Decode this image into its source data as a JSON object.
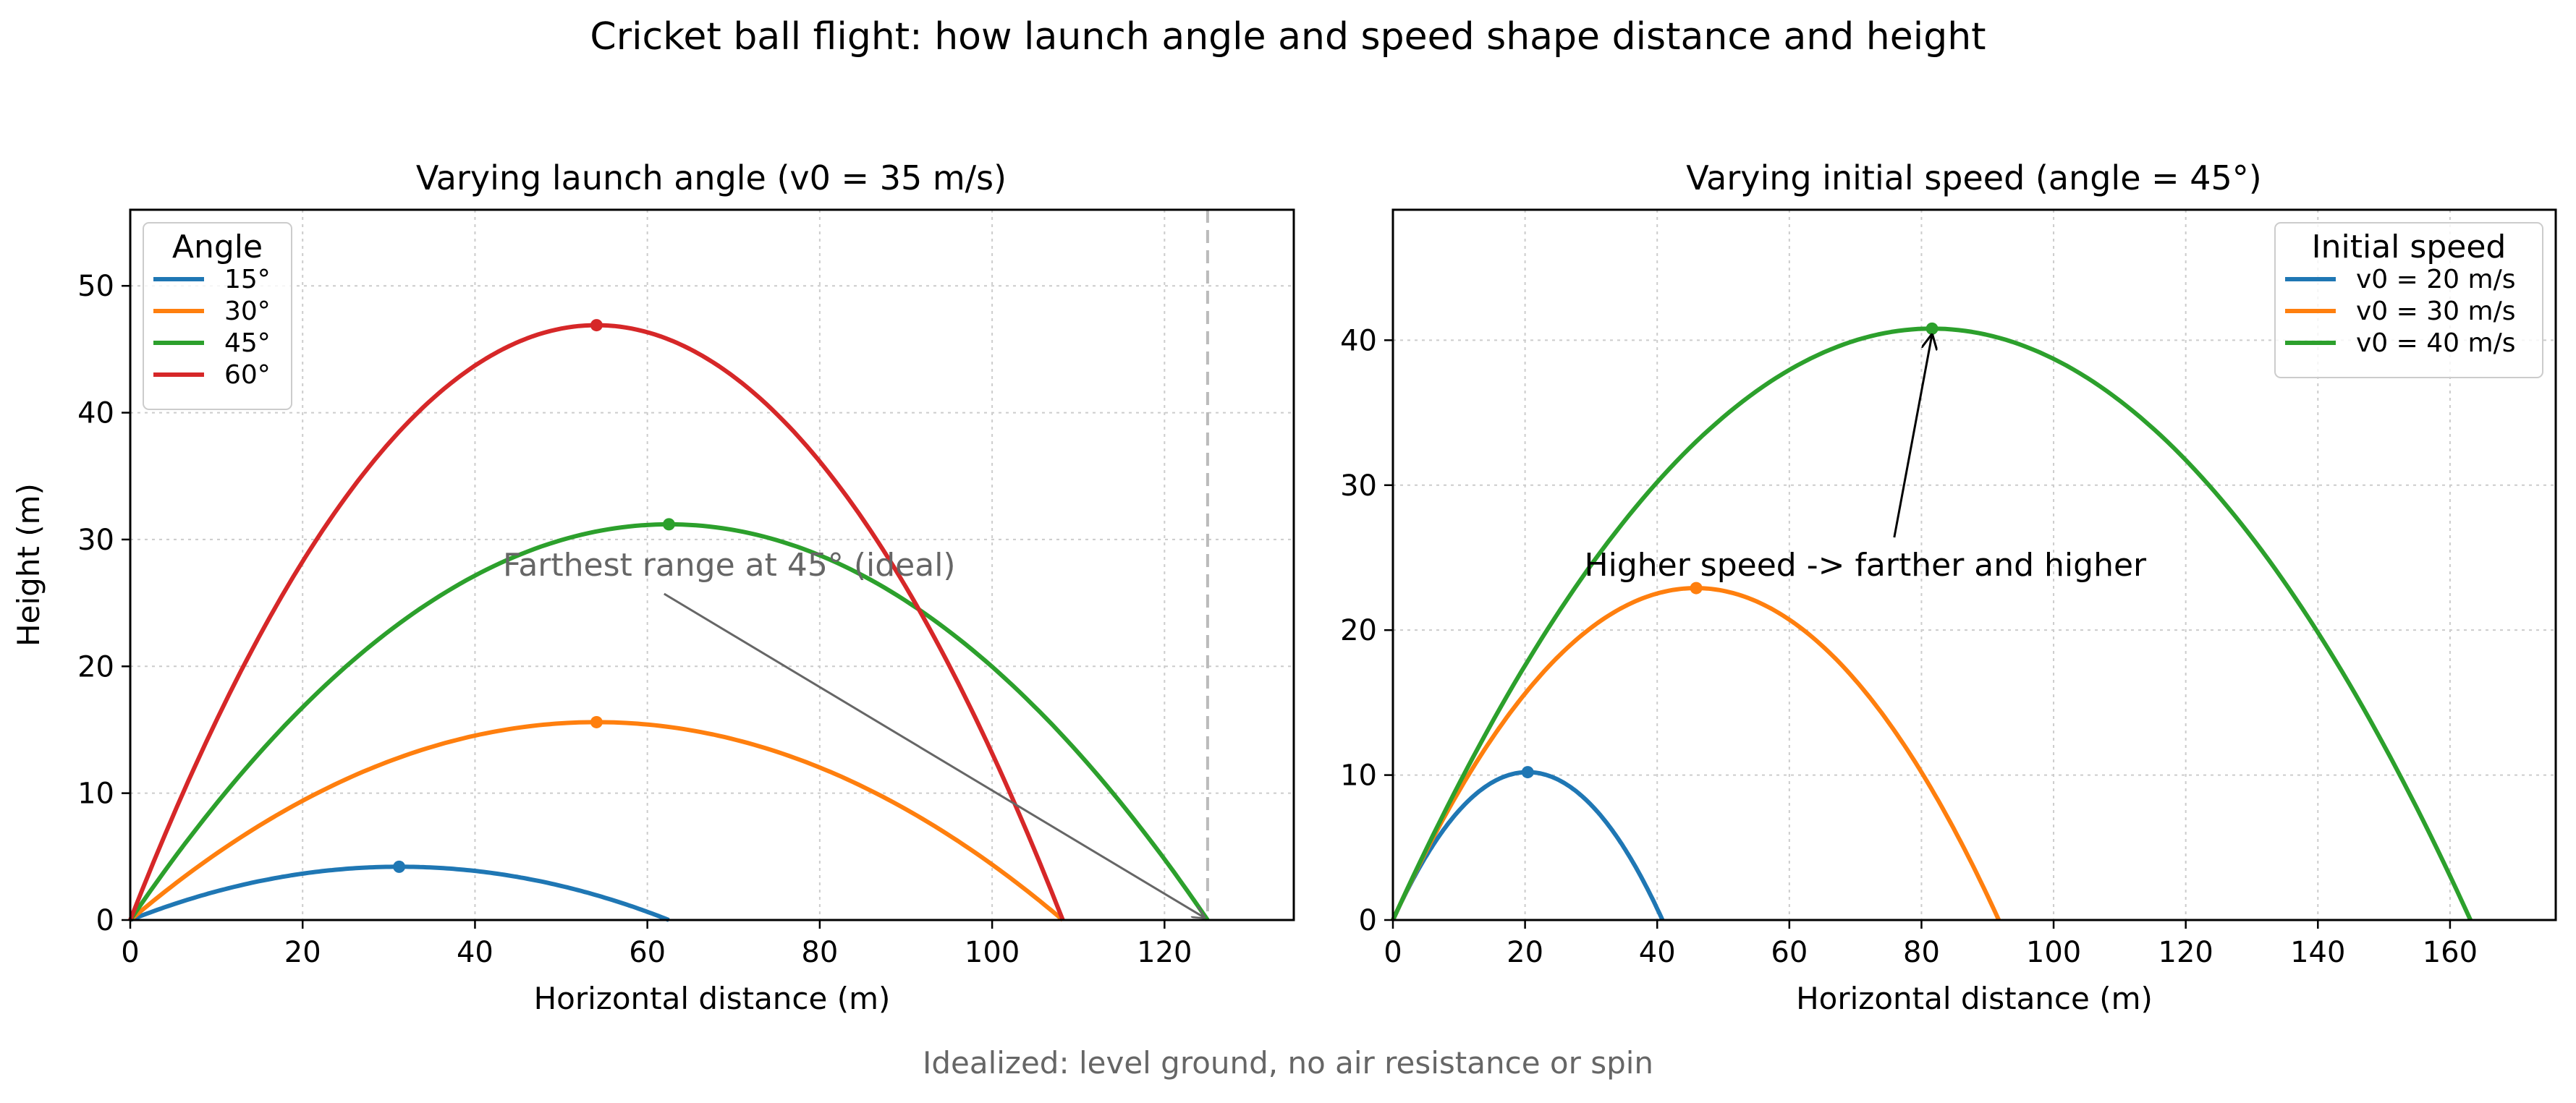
{
  "title": "Cricket ball flight: how launch angle and speed shape distance and height",
  "footer": "Idealized: level ground, no air resistance or spin",
  "colors": {
    "blue": "#1f77b4",
    "orange": "#ff7f0e",
    "green": "#2ca02c",
    "red": "#d62728",
    "grid": "#cccccc",
    "annotation_gray": "#666666",
    "guide_line": "#bbbbbb"
  },
  "chart_data": [
    {
      "type": "line",
      "title": "Varying launch angle (v0 = 35 m/s)",
      "xlabel": "Horizontal distance (m)",
      "ylabel": "Height (m)",
      "xlim": [
        0,
        135
      ],
      "ylim": [
        0,
        56
      ],
      "xticks": [
        0,
        20,
        40,
        60,
        80,
        100,
        120
      ],
      "yticks": [
        0,
        10,
        20,
        30,
        40,
        50
      ],
      "grid": true,
      "legend": {
        "title": "Angle",
        "position": "top-left"
      },
      "series": [
        {
          "name": "15°",
          "color": "#1f77b4",
          "range": 62.5,
          "peak": [
            31.2,
            4.2
          ]
        },
        {
          "name": "30°",
          "color": "#ff7f0e",
          "range": 108.2,
          "peak": [
            54.1,
            15.6
          ]
        },
        {
          "name": "45°",
          "color": "#2ca02c",
          "range": 125.0,
          "peak": [
            62.5,
            31.2
          ]
        },
        {
          "name": "60°",
          "color": "#d62728",
          "range": 108.2,
          "peak": [
            54.1,
            46.9
          ]
        }
      ],
      "reference_line": {
        "x": 125.0,
        "style": "dashed"
      },
      "annotation": {
        "text": "Farthest range at 45° (ideal)",
        "text_at": [
          69.5,
          28.0
        ],
        "points_to": [
          125.0,
          0
        ]
      }
    },
    {
      "type": "line",
      "title": "Varying initial speed (angle = 45°)",
      "xlabel": "Horizontal distance (m)",
      "ylabel": "",
      "xlim": [
        0,
        176
      ],
      "ylim": [
        0,
        49
      ],
      "xticks": [
        0,
        20,
        40,
        60,
        80,
        100,
        120,
        140,
        160
      ],
      "yticks": [
        0,
        10,
        20,
        30,
        40
      ],
      "grid": true,
      "legend": {
        "title": "Initial speed",
        "position": "top-right"
      },
      "series": [
        {
          "name": "v0 = 20 m/s",
          "color": "#1f77b4",
          "range": 40.8,
          "peak": [
            20.4,
            10.2
          ]
        },
        {
          "name": "v0 = 30 m/s",
          "color": "#ff7f0e",
          "range": 91.7,
          "peak": [
            45.9,
            22.9
          ]
        },
        {
          "name": "v0 = 40 m/s",
          "color": "#2ca02c",
          "range": 163.1,
          "peak": [
            81.6,
            40.8
          ]
        }
      ],
      "annotation": {
        "text": "Higher speed -> farther and higher",
        "text_at": [
          71.5,
          24.5
        ],
        "points_to": [
          81.6,
          40.8
        ]
      }
    }
  ]
}
